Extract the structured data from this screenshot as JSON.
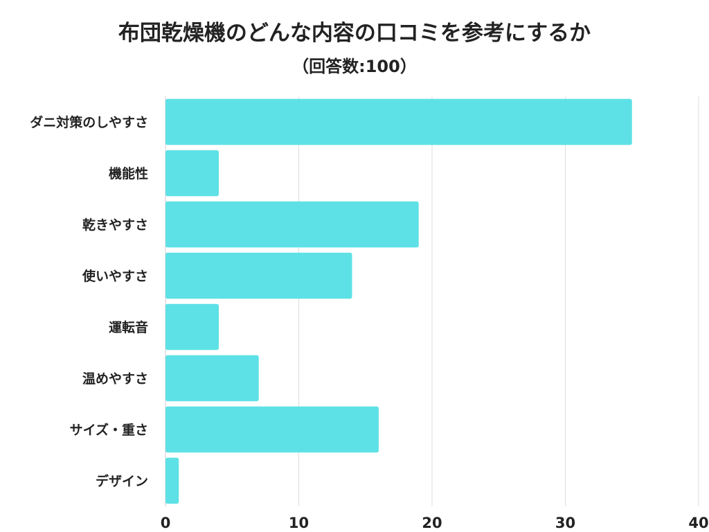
{
  "chart_data": {
    "type": "bar",
    "orientation": "horizontal",
    "title": "布団乾燥機のどんな内容の口コミを参考にするか",
    "subtitle": "（回答数:100）",
    "categories": [
      "ダニ対策のしやすさ",
      "機能性",
      "乾きやすさ",
      "使いやすさ",
      "運転音",
      "温めやすさ",
      "サイズ・重さ",
      "デザイン"
    ],
    "values": [
      35,
      4,
      19,
      14,
      4,
      7,
      16,
      1
    ],
    "xlim": [
      0,
      40
    ],
    "xticks": [
      0,
      10,
      20,
      30,
      40
    ],
    "grid": true,
    "bar_color": "#5ee1e6",
    "grid_color": "#dddddd"
  }
}
